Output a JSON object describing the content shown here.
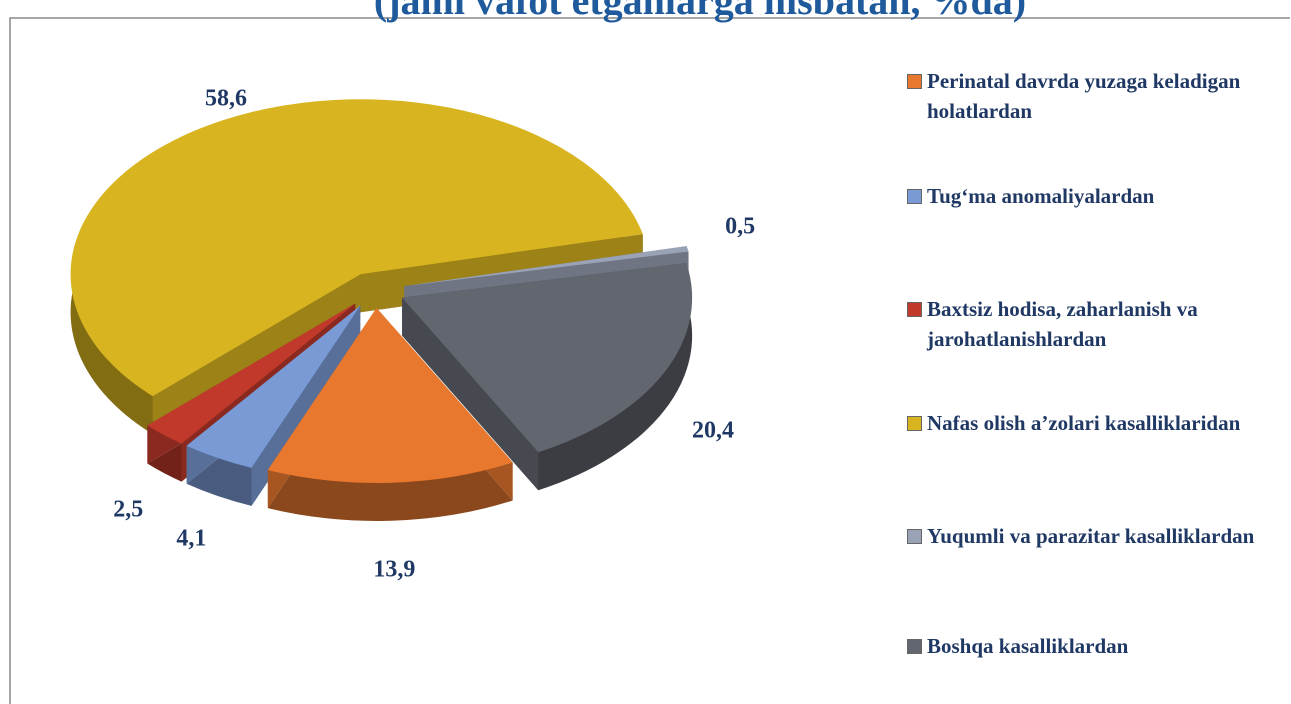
{
  "chart_data": {
    "type": "pie",
    "title": "(jami vafot etganlarga nisbatan, %da)",
    "categories": [
      "Perinatal davrda yuzaga keladigan holatlardan",
      "Tug‘ma anomaliyalardan",
      "Baxtsiz hodisa, zaharlanish va jarohatlanishlardan",
      "Nafas olish a’zolari kasalliklaridan",
      "Yuqumli va parazitar kasalliklardan",
      "Boshqa kasalliklardan"
    ],
    "values": [
      13.9,
      4.1,
      2.5,
      58.6,
      0.5,
      20.4
    ],
    "value_labels": [
      "13,9",
      "4,1",
      "2,5",
      "58,6",
      "0,5",
      "20,4"
    ],
    "colors": [
      "#e8782e",
      "#7a9ad6",
      "#c0392b",
      "#d8b520",
      "#9aa2b6",
      "#62666f"
    ],
    "legend": "right"
  }
}
